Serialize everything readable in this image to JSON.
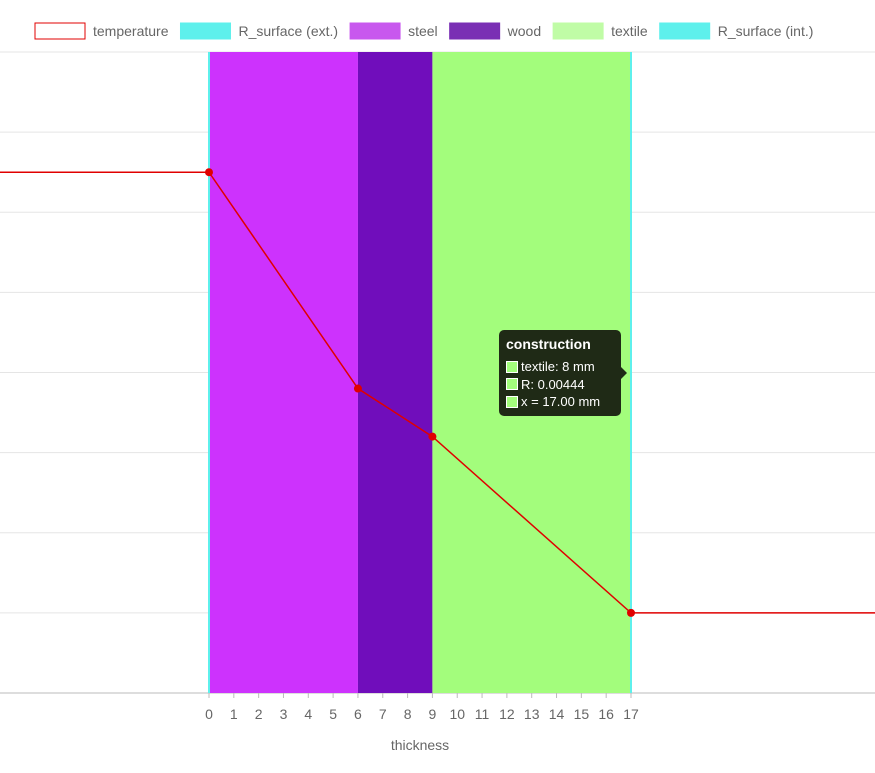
{
  "chart_data": {
    "type": "area",
    "xlabel": "thickness",
    "ylabel": "",
    "x_ticks": [
      0,
      1,
      2,
      3,
      4,
      5,
      6,
      7,
      8,
      9,
      10,
      11,
      12,
      13,
      14,
      15,
      16,
      17
    ],
    "grid": true,
    "legend_position": "top",
    "legend": [
      {
        "name": "temperature",
        "color": "#ffffff",
        "border": "#e00000"
      },
      {
        "name": "R_surface (ext.)",
        "color": "#5ef0ec",
        "border": "#5ef0ec"
      },
      {
        "name": "steel",
        "color": "#c858ee",
        "border": "#c858ee"
      },
      {
        "name": "wood",
        "color": "#7a2fb4",
        "border": "#7a2fb4"
      },
      {
        "name": "textile",
        "color": "#c0fca6",
        "border": "#c0fca6"
      },
      {
        "name": "R_surface (int.)",
        "color": "#5ef0ec",
        "border": "#5ef0ec"
      }
    ],
    "layers": [
      {
        "name": "steel",
        "x_start": 0,
        "x_end": 6,
        "color": "#cd32fd"
      },
      {
        "name": "wood",
        "x_start": 6,
        "x_end": 9,
        "color": "#700dbb"
      },
      {
        "name": "textile",
        "x_start": 9,
        "x_end": 17,
        "color": "#a3fd7c"
      }
    ],
    "temperature_series": {
      "name": "temperature",
      "color": "#e00000",
      "points": [
        {
          "x": 0,
          "y": 6.5
        },
        {
          "x": 6,
          "y": 3.8
        },
        {
          "x": 9,
          "y": 3.2
        },
        {
          "x": 17,
          "y": 1.0
        }
      ]
    },
    "tooltip": {
      "title": "construction",
      "swatch_color": "#a3fd7c",
      "lines": [
        "textile: 8 mm",
        "R: 0.00444",
        "x = 17.00 mm"
      ]
    }
  }
}
